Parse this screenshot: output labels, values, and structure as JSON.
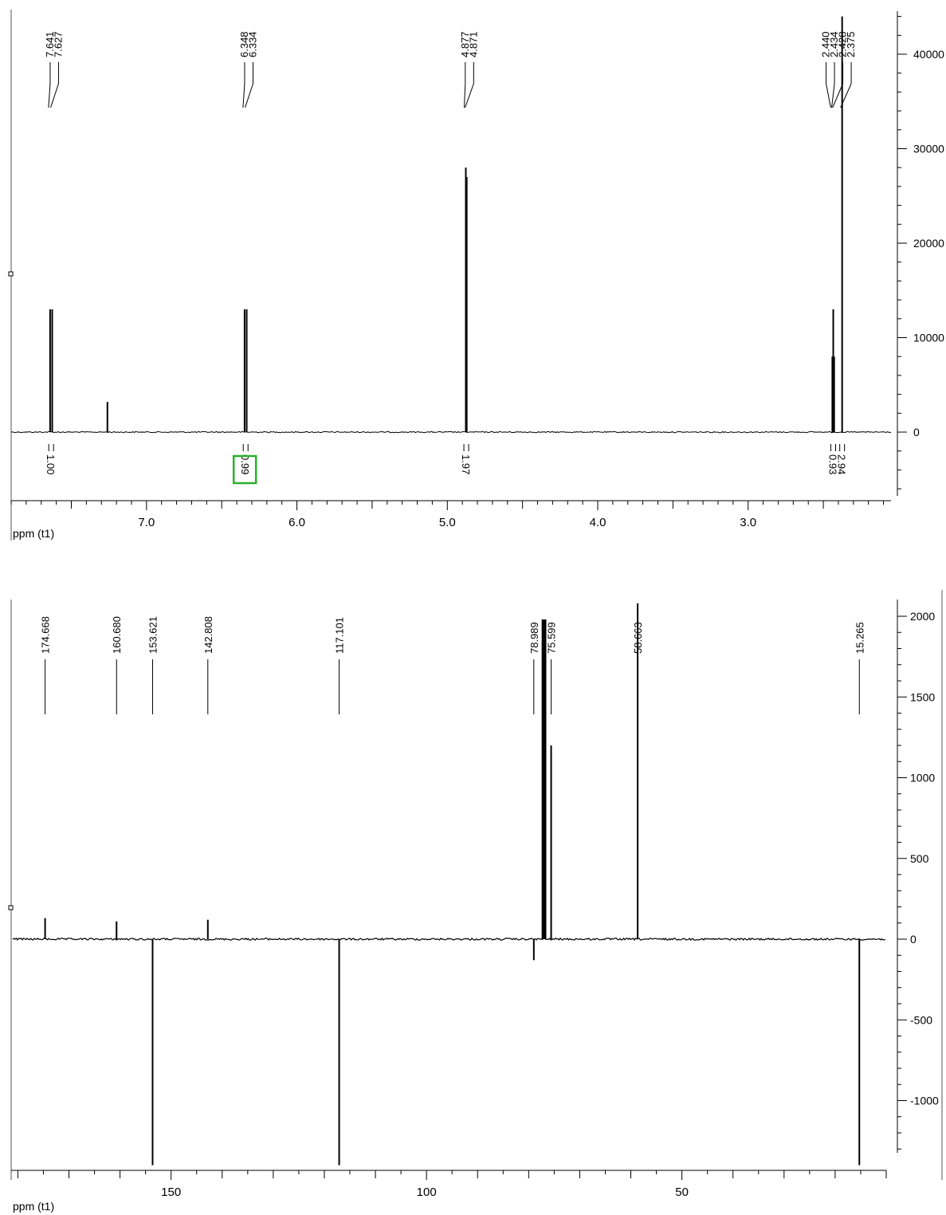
{
  "chart_data": [
    {
      "type": "line",
      "subtype": "nmr-1h",
      "xlabel": "ppm (t1)",
      "xlim": [
        7.9,
        2.05
      ],
      "x_ticks": [
        "7.0",
        "6.0",
        "5.0",
        "4.0",
        "3.0"
      ],
      "x_tick_values": [
        7.0,
        6.0,
        5.0,
        4.0,
        3.0
      ],
      "ylim": [
        -6500,
        45000
      ],
      "y_ticks": [
        "40000",
        "30000",
        "20000",
        "10000",
        "0"
      ],
      "y_tick_values": [
        40000,
        30000,
        20000,
        10000,
        0
      ],
      "peaks": [
        {
          "ppm": 7.641,
          "height": 13000
        },
        {
          "ppm": 7.627,
          "height": 13000
        },
        {
          "ppm": 7.26,
          "height": 3200
        },
        {
          "ppm": 6.348,
          "height": 13000
        },
        {
          "ppm": 6.334,
          "height": 13000
        },
        {
          "ppm": 4.877,
          "height": 28000
        },
        {
          "ppm": 4.871,
          "height": 27000
        },
        {
          "ppm": 2.44,
          "height": 8000
        },
        {
          "ppm": 2.434,
          "height": 13000
        },
        {
          "ppm": 2.428,
          "height": 8000
        },
        {
          "ppm": 2.375,
          "height": 44000
        }
      ],
      "peak_labels": [
        {
          "group": [
            "7.641",
            "7.627"
          ],
          "values": [
            7.641,
            7.627
          ]
        },
        {
          "group": [
            "6.348",
            "6.334"
          ],
          "values": [
            6.348,
            6.334
          ]
        },
        {
          "group": [
            "4.877",
            "4.871"
          ],
          "values": [
            4.877,
            4.871
          ]
        },
        {
          "group": [
            "2.440",
            "2.434",
            "2.428",
            "2.375"
          ],
          "values": [
            2.44,
            2.434,
            2.428,
            2.375
          ]
        }
      ],
      "integrals": [
        {
          "ppm": 7.634,
          "label": "1.00"
        },
        {
          "ppm": 6.341,
          "label": "0.99",
          "highlighted": true
        },
        {
          "ppm": 4.874,
          "label": "1.97"
        },
        {
          "ppm": 2.434,
          "label": "0.93"
        },
        {
          "ppm": 2.375,
          "label": "2.94"
        }
      ],
      "highlight_color": "#2bb02b"
    },
    {
      "type": "line",
      "subtype": "nmr-13c-dept",
      "xlabel": "ppm (t1)",
      "xlim": [
        181,
        10
      ],
      "x_ticks": [
        "150",
        "100",
        "50"
      ],
      "x_tick_values": [
        150,
        100,
        50
      ],
      "ylim": [
        -1400,
        2080
      ],
      "y_ticks": [
        "2000",
        "1500",
        "1000",
        "500",
        "0",
        "-500",
        "-1000"
      ],
      "y_tick_values": [
        2000,
        1500,
        1000,
        500,
        0,
        -500,
        -1000
      ],
      "peaks": [
        {
          "ppm": 174.668,
          "height": 130
        },
        {
          "ppm": 160.68,
          "height": 110
        },
        {
          "ppm": 153.621,
          "height": -1400
        },
        {
          "ppm": 142.808,
          "height": 120
        },
        {
          "ppm": 117.101,
          "height": -1400
        },
        {
          "ppm": 78.989,
          "height": -130
        },
        {
          "ppm": 77.3,
          "height": 1980
        },
        {
          "ppm": 77.0,
          "height": 1980
        },
        {
          "ppm": 76.7,
          "height": 1980
        },
        {
          "ppm": 75.599,
          "height": 1200
        },
        {
          "ppm": 58.663,
          "height": 2080
        },
        {
          "ppm": 15.265,
          "height": -1400
        }
      ],
      "peak_labels": [
        {
          "label": "174.668",
          "value": 174.668
        },
        {
          "label": "160.680",
          "value": 160.68
        },
        {
          "label": "153.621",
          "value": 153.621
        },
        {
          "label": "142.808",
          "value": 142.808
        },
        {
          "label": "117.101",
          "value": 117.101
        },
        {
          "label": "78.989",
          "value": 78.989
        },
        {
          "label": "75.599",
          "value": 75.599
        },
        {
          "label": "58.663",
          "value": 58.663
        },
        {
          "label": "15.265",
          "value": 15.265
        }
      ]
    }
  ]
}
